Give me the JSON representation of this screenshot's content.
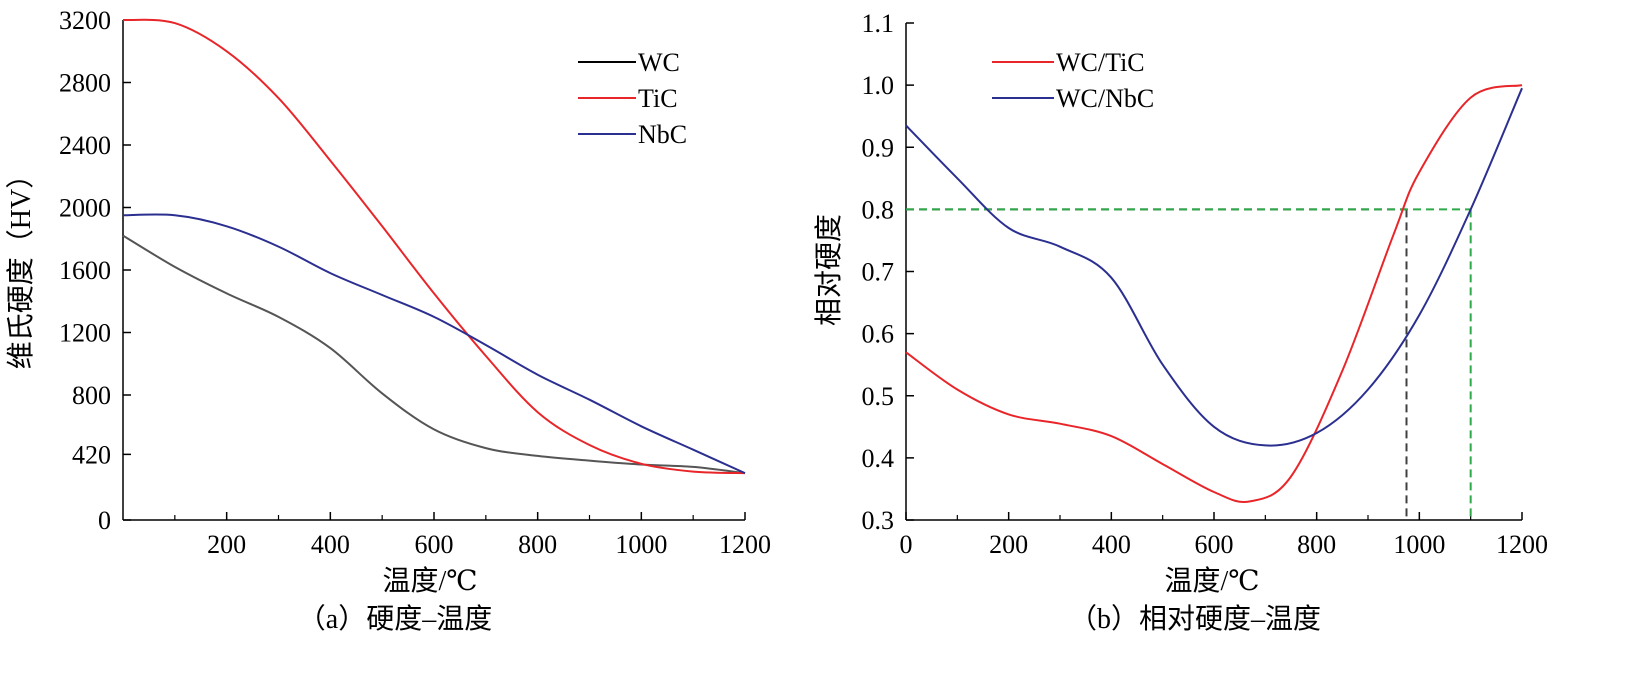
{
  "chart_data": [
    {
      "type": "line",
      "caption": "（a）硬度–温度",
      "xlabel": "温度/℃",
      "ylabel": "维氏硬度（HV）",
      "xlim": [
        0,
        1200
      ],
      "ylim": [
        0,
        3200
      ],
      "xticks": [
        200,
        400,
        600,
        800,
        1000,
        1200
      ],
      "yticks": [
        0,
        420,
        800,
        1200,
        1600,
        2000,
        2400,
        2800,
        3200
      ],
      "grid": false,
      "legend_position": "top-right",
      "series": [
        {
          "name": "WC",
          "color": "#555555",
          "legend_color": "#000000",
          "x": [
            0,
            100,
            200,
            300,
            400,
            500,
            600,
            700,
            800,
            900,
            1000,
            1100,
            1200
          ],
          "y": [
            1820,
            1620,
            1450,
            1300,
            1100,
            810,
            580,
            460,
            410,
            380,
            355,
            340,
            300
          ]
        },
        {
          "name": "TiC",
          "color": "#e8262a",
          "x": [
            0,
            100,
            200,
            300,
            400,
            500,
            600,
            700,
            800,
            900,
            1000,
            1100,
            1200
          ],
          "y": [
            3200,
            3180,
            3000,
            2700,
            2300,
            1880,
            1450,
            1050,
            690,
            480,
            360,
            310,
            300
          ]
        },
        {
          "name": "NbC",
          "color": "#2b2f90",
          "x": [
            0,
            100,
            200,
            300,
            400,
            500,
            600,
            700,
            800,
            900,
            1000,
            1100,
            1200
          ],
          "y": [
            1950,
            1950,
            1880,
            1750,
            1580,
            1440,
            1300,
            1120,
            930,
            770,
            600,
            450,
            300
          ]
        }
      ]
    },
    {
      "type": "line",
      "caption": "（b）相对硬度–温度",
      "xlabel": "温度/℃",
      "ylabel": "相对硬度",
      "xlim": [
        0,
        1200
      ],
      "ylim": [
        0.3,
        1.1
      ],
      "xticks": [
        0,
        200,
        400,
        600,
        800,
        1000,
        1200
      ],
      "yticks": [
        0.3,
        0.4,
        0.5,
        0.6,
        0.7,
        0.8,
        0.9,
        1.0,
        1.1
      ],
      "grid": false,
      "legend_position": "top-left",
      "series": [
        {
          "name": "WC/TiC",
          "color": "#e8262a",
          "x": [
            0,
            100,
            200,
            300,
            400,
            500,
            600,
            670,
            750,
            850,
            950,
            1000,
            1100,
            1200
          ],
          "y": [
            0.57,
            0.51,
            0.47,
            0.455,
            0.435,
            0.39,
            0.345,
            0.33,
            0.37,
            0.54,
            0.76,
            0.86,
            0.98,
            1.0
          ]
        },
        {
          "name": "WC/NbC",
          "color": "#2b2f90",
          "x": [
            0,
            100,
            200,
            300,
            400,
            500,
            600,
            700,
            800,
            900,
            1000,
            1100,
            1200
          ],
          "y": [
            0.935,
            0.85,
            0.77,
            0.74,
            0.69,
            0.55,
            0.45,
            0.42,
            0.44,
            0.51,
            0.63,
            0.8,
            0.995
          ]
        }
      ],
      "reference_lines": [
        {
          "color": "#404040",
          "y": 0.8,
          "x": 975
        },
        {
          "color": "#2eaa4a",
          "y": 0.8,
          "x": 1100
        }
      ]
    }
  ]
}
